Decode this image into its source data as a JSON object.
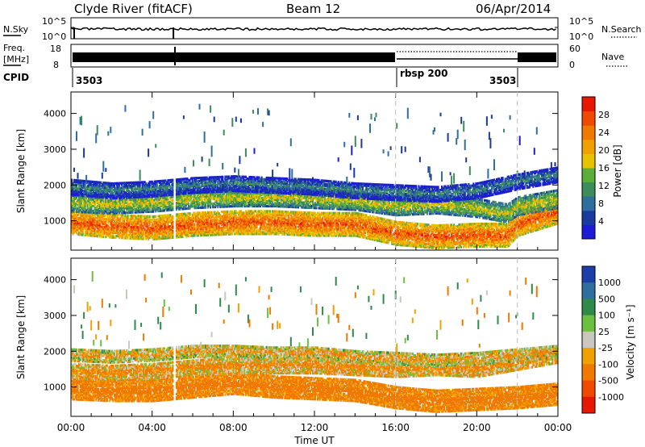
{
  "header": {
    "station": "Clyde River (fitACF)",
    "beam": "Beam 12",
    "date": "06/Apr/2014"
  },
  "strip_panels": {
    "nsky": {
      "label": "N.Sky",
      "left_ticks": [
        "10^5",
        "10^0"
      ],
      "right_ticks": [
        "10^5",
        "10^0"
      ],
      "right_label": "N.Search"
    },
    "freq": {
      "label_line1": "Freq.",
      "label_line2": "[MHz]",
      "left_ticks": [
        "18",
        "8"
      ],
      "right_ticks": [
        "60",
        "0"
      ],
      "right_label": "Nave"
    },
    "cpid": {
      "label": "CPID",
      "segments": [
        "3503",
        "rbsp 200",
        "3503"
      ]
    }
  },
  "colors": {
    "power_scale": [
      "#1c1cd8",
      "#1a3aa0",
      "#2f6fa0",
      "#3d8c5a",
      "#5cae3a",
      "#e6c200",
      "#f0a000",
      "#f07a00",
      "#f04a00",
      "#e81800"
    ],
    "velocity_scale": [
      "#1c3ea8",
      "#2f6fa0",
      "#2f8a4a",
      "#6cc040",
      "#c8c8c0",
      "#f0a000",
      "#f07a00",
      "#f04a00",
      "#e81800"
    ]
  },
  "chart_data": [
    {
      "type": "heatmap",
      "panel": "power",
      "ylabel": "Slant Range [km]",
      "ylim": [
        180,
        4600
      ],
      "yticks": [
        1000,
        2000,
        3000,
        4000
      ],
      "xlim": [
        0,
        24
      ],
      "colorbar": {
        "label": "Power [dB]",
        "range": [
          0,
          32
        ],
        "ticks": [
          "4",
          "8",
          "12",
          "16",
          "20",
          "24",
          "28"
        ]
      },
      "bands": [
        {
          "x": [
            0,
            2,
            4,
            6,
            8,
            10,
            12,
            14,
            16,
            18,
            20,
            21.5,
            22,
            24
          ],
          "y": [
            950,
            850,
            800,
            900,
            950,
            950,
            900,
            900,
            650,
            550,
            600,
            600,
            900,
            1250
          ],
          "w": 650,
          "dB": 27
        },
        {
          "x": [
            0,
            2,
            4,
            6,
            8,
            10,
            12,
            14,
            16,
            18,
            20,
            21.5,
            22,
            24
          ],
          "y": [
            1500,
            1450,
            1500,
            1600,
            1650,
            1650,
            1600,
            1550,
            1400,
            1450,
            1350,
            1200,
            1400,
            1600
          ],
          "w": 500,
          "dB": 18
        },
        {
          "x": [
            0,
            2,
            4,
            6,
            8,
            10,
            12,
            14,
            16,
            18,
            20,
            22,
            24
          ],
          "y": [
            1950,
            1850,
            1900,
            2000,
            2050,
            2000,
            1950,
            1850,
            1800,
            1750,
            1850,
            2100,
            2300
          ],
          "w": 450,
          "dB": 10
        }
      ]
    },
    {
      "type": "heatmap",
      "panel": "velocity",
      "ylabel": "Slant Range [km]",
      "ylim": [
        180,
        4600
      ],
      "yticks": [
        1000,
        2000,
        3000,
        4000
      ],
      "xlim": [
        0,
        24
      ],
      "xlabel": "Time UT",
      "xticks": [
        "00:00",
        "04:00",
        "08:00",
        "12:00",
        "16:00",
        "20:00",
        "00:00"
      ],
      "xtick_values": [
        0,
        4,
        8,
        12,
        16,
        20,
        24
      ],
      "dashed_markers": [
        16,
        22
      ],
      "colorbar": {
        "label": "Velocity [m s⁻¹]",
        "ticks": [
          "1000",
          "500",
          "100",
          "25",
          "-25",
          "-100",
          "-500",
          "-1000"
        ]
      },
      "bands": [
        {
          "x": [
            0,
            2,
            4,
            6,
            8,
            10,
            12,
            14,
            16,
            18,
            20,
            22,
            24
          ],
          "y": [
            950,
            900,
            900,
            1000,
            1100,
            1000,
            950,
            900,
            700,
            600,
            650,
            700,
            800
          ],
          "w": 600,
          "v": -150
        },
        {
          "x": [
            0,
            2,
            4,
            6,
            8,
            10,
            12,
            14,
            16,
            18,
            20,
            22,
            24
          ],
          "y": [
            1450,
            1400,
            1450,
            1550,
            1600,
            1600,
            1600,
            1550,
            1500,
            1550,
            1500,
            1700,
            1900
          ],
          "w": 450,
          "v": -60
        },
        {
          "x": [
            0,
            2,
            4,
            6,
            8,
            10,
            12,
            14,
            16,
            18,
            20,
            22,
            24
          ],
          "y": [
            1900,
            1850,
            1900,
            2000,
            2000,
            1950,
            1950,
            1850,
            1800,
            1750,
            1800,
            1900,
            2000
          ],
          "w": 350,
          "v": 0
        }
      ]
    }
  ]
}
